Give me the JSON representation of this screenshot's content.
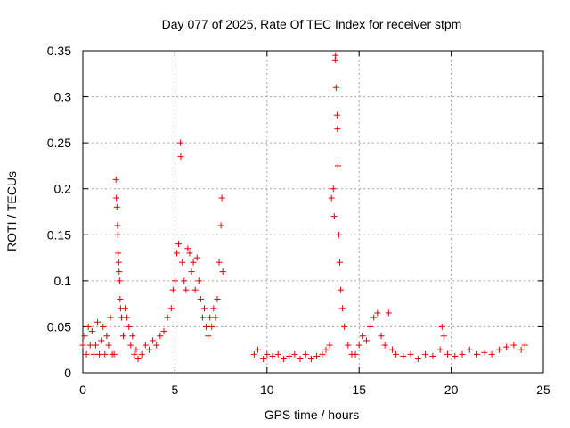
{
  "chart_data": {
    "type": "scatter",
    "title": "Day 077 of 2025, Rate Of TEC Index for receiver stpm",
    "xlabel": "GPS time / hours",
    "ylabel": "ROTI / TECUs",
    "xlim": [
      0,
      25
    ],
    "ylim": [
      0,
      0.35
    ],
    "xticks": [
      0,
      5,
      10,
      15,
      20,
      25
    ],
    "xtick_labels": [
      "0",
      "5",
      "10",
      "15",
      "20",
      "25"
    ],
    "yticks": [
      0,
      0.05,
      0.1,
      0.15,
      0.2,
      0.25,
      0.3,
      0.35
    ],
    "ytick_labels": [
      "0",
      "0.05",
      "0.1",
      "0.15",
      "0.2",
      "0.25",
      "0.3",
      "0.35"
    ],
    "grid": true,
    "marker": "plus",
    "color": "#e00000",
    "series": [
      {
        "name": "ROTI",
        "points": [
          [
            0.0,
            0.03
          ],
          [
            0.1,
            0.04
          ],
          [
            0.2,
            0.02
          ],
          [
            0.3,
            0.05
          ],
          [
            0.4,
            0.03
          ],
          [
            0.5,
            0.045
          ],
          [
            0.6,
            0.02
          ],
          [
            0.7,
            0.03
          ],
          [
            0.8,
            0.055
          ],
          [
            0.9,
            0.02
          ],
          [
            1.0,
            0.035
          ],
          [
            1.1,
            0.05
          ],
          [
            1.2,
            0.02
          ],
          [
            1.3,
            0.04
          ],
          [
            1.4,
            0.03
          ],
          [
            1.5,
            0.06
          ],
          [
            1.6,
            0.02
          ],
          [
            1.7,
            0.02
          ],
          [
            1.8,
            0.21
          ],
          [
            1.82,
            0.19
          ],
          [
            1.85,
            0.18
          ],
          [
            1.88,
            0.16
          ],
          [
            1.9,
            0.15
          ],
          [
            1.92,
            0.13
          ],
          [
            1.95,
            0.12
          ],
          [
            1.97,
            0.11
          ],
          [
            2.0,
            0.1
          ],
          [
            2.02,
            0.08
          ],
          [
            2.05,
            0.07
          ],
          [
            2.1,
            0.06
          ],
          [
            2.2,
            0.04
          ],
          [
            2.3,
            0.07
          ],
          [
            2.4,
            0.06
          ],
          [
            2.5,
            0.05
          ],
          [
            2.6,
            0.03
          ],
          [
            2.7,
            0.04
          ],
          [
            2.8,
            0.02
          ],
          [
            2.9,
            0.025
          ],
          [
            3.0,
            0.015
          ],
          [
            3.2,
            0.02
          ],
          [
            3.4,
            0.03
          ],
          [
            3.6,
            0.025
          ],
          [
            3.8,
            0.035
          ],
          [
            4.0,
            0.03
          ],
          [
            4.2,
            0.04
          ],
          [
            4.4,
            0.045
          ],
          [
            4.6,
            0.06
          ],
          [
            4.8,
            0.07
          ],
          [
            4.9,
            0.09
          ],
          [
            5.0,
            0.1
          ],
          [
            5.1,
            0.13
          ],
          [
            5.2,
            0.14
          ],
          [
            5.3,
            0.25
          ],
          [
            5.32,
            0.235
          ],
          [
            5.4,
            0.12
          ],
          [
            5.5,
            0.1
          ],
          [
            5.6,
            0.09
          ],
          [
            5.7,
            0.135
          ],
          [
            5.8,
            0.13
          ],
          [
            5.9,
            0.11
          ],
          [
            6.0,
            0.12
          ],
          [
            6.1,
            0.09
          ],
          [
            6.2,
            0.125
          ],
          [
            6.3,
            0.1
          ],
          [
            6.4,
            0.08
          ],
          [
            6.5,
            0.06
          ],
          [
            6.6,
            0.07
          ],
          [
            6.7,
            0.05
          ],
          [
            6.8,
            0.04
          ],
          [
            6.9,
            0.06
          ],
          [
            7.0,
            0.05
          ],
          [
            7.1,
            0.07
          ],
          [
            7.2,
            0.06
          ],
          [
            7.3,
            0.08
          ],
          [
            7.4,
            0.12
          ],
          [
            7.5,
            0.16
          ],
          [
            7.55,
            0.19
          ],
          [
            7.6,
            0.11
          ],
          [
            9.3,
            0.02
          ],
          [
            9.5,
            0.025
          ],
          [
            9.8,
            0.015
          ],
          [
            10.0,
            0.02
          ],
          [
            10.3,
            0.018
          ],
          [
            10.6,
            0.02
          ],
          [
            10.9,
            0.015
          ],
          [
            11.2,
            0.018
          ],
          [
            11.5,
            0.02
          ],
          [
            11.8,
            0.015
          ],
          [
            12.1,
            0.02
          ],
          [
            12.4,
            0.015
          ],
          [
            12.7,
            0.018
          ],
          [
            13.0,
            0.02
          ],
          [
            13.2,
            0.025
          ],
          [
            13.4,
            0.03
          ],
          [
            13.5,
            0.19
          ],
          [
            13.6,
            0.2
          ],
          [
            13.65,
            0.17
          ],
          [
            13.7,
            0.34
          ],
          [
            13.72,
            0.345
          ],
          [
            13.75,
            0.31
          ],
          [
            13.8,
            0.28
          ],
          [
            13.82,
            0.265
          ],
          [
            13.85,
            0.225
          ],
          [
            13.9,
            0.15
          ],
          [
            13.95,
            0.12
          ],
          [
            14.0,
            0.09
          ],
          [
            14.1,
            0.07
          ],
          [
            14.2,
            0.05
          ],
          [
            14.4,
            0.03
          ],
          [
            14.6,
            0.02
          ],
          [
            14.8,
            0.02
          ],
          [
            15.0,
            0.03
          ],
          [
            15.2,
            0.04
          ],
          [
            15.4,
            0.035
          ],
          [
            15.6,
            0.05
          ],
          [
            15.8,
            0.06
          ],
          [
            16.0,
            0.065
          ],
          [
            16.2,
            0.04
          ],
          [
            16.4,
            0.03
          ],
          [
            16.6,
            0.065
          ],
          [
            16.8,
            0.025
          ],
          [
            17.0,
            0.02
          ],
          [
            17.4,
            0.018
          ],
          [
            17.8,
            0.02
          ],
          [
            18.2,
            0.015
          ],
          [
            18.6,
            0.02
          ],
          [
            19.0,
            0.018
          ],
          [
            19.4,
            0.025
          ],
          [
            19.5,
            0.05
          ],
          [
            19.6,
            0.04
          ],
          [
            19.8,
            0.02
          ],
          [
            20.2,
            0.018
          ],
          [
            20.6,
            0.02
          ],
          [
            21.0,
            0.025
          ],
          [
            21.4,
            0.02
          ],
          [
            21.8,
            0.022
          ],
          [
            22.2,
            0.02
          ],
          [
            22.6,
            0.025
          ],
          [
            23.0,
            0.028
          ],
          [
            23.4,
            0.03
          ],
          [
            23.8,
            0.025
          ],
          [
            24.0,
            0.03
          ]
        ]
      }
    ]
  }
}
